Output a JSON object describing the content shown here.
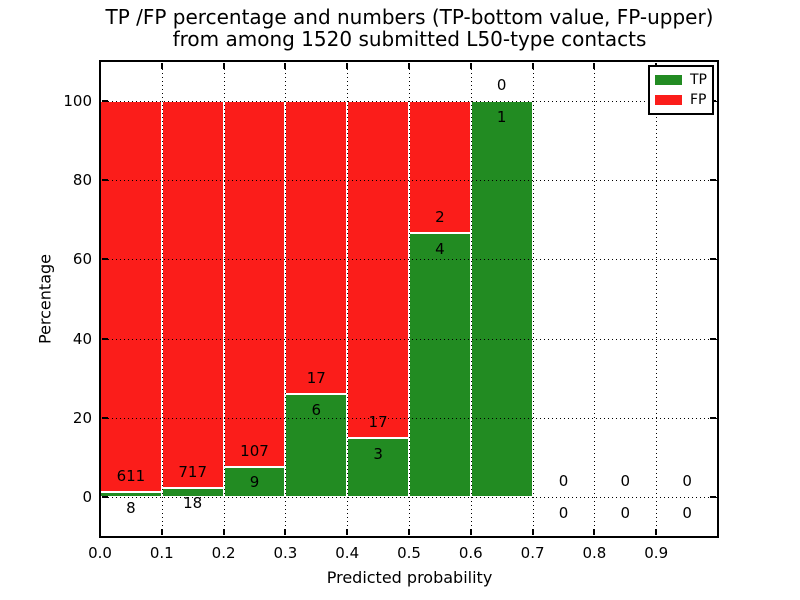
{
  "chart_data": {
    "type": "bar",
    "stacked": true,
    "normalized_to_percent": true,
    "title_lines": [
      "TP /FP percentage and numbers (TP-bottom value, FP-upper)",
      "from among 1520 submitted L50-type contacts"
    ],
    "xlabel": "Predicted probability",
    "ylabel": "Percentage",
    "xlim": [
      0.0,
      1.0
    ],
    "ylim": [
      -10,
      110
    ],
    "xticks": [
      "0.0",
      "0.1",
      "0.2",
      "0.3",
      "0.4",
      "0.5",
      "0.6",
      "0.7",
      "0.8",
      "0.9"
    ],
    "yticks": [
      0,
      20,
      40,
      60,
      80,
      100
    ],
    "grid": "dotted, both axes, drawn over bars",
    "total_contacts": 1520,
    "annotation_rule": "TP count shown below green top, FP count shown above green top",
    "bins": [
      {
        "x_start": 0.0,
        "x_end": 0.1,
        "tp": 8,
        "fp": 611
      },
      {
        "x_start": 0.1,
        "x_end": 0.2,
        "tp": 18,
        "fp": 717
      },
      {
        "x_start": 0.2,
        "x_end": 0.3,
        "tp": 9,
        "fp": 107
      },
      {
        "x_start": 0.3,
        "x_end": 0.4,
        "tp": 6,
        "fp": 17
      },
      {
        "x_start": 0.4,
        "x_end": 0.5,
        "tp": 3,
        "fp": 17
      },
      {
        "x_start": 0.5,
        "x_end": 0.6,
        "tp": 4,
        "fp": 2
      },
      {
        "x_start": 0.6,
        "x_end": 0.7,
        "tp": 1,
        "fp": 0
      },
      {
        "x_start": 0.7,
        "x_end": 0.8,
        "tp": 0,
        "fp": 0
      },
      {
        "x_start": 0.8,
        "x_end": 0.9,
        "tp": 0,
        "fp": 0
      },
      {
        "x_start": 0.9,
        "x_end": 1.0,
        "tp": 0,
        "fp": 0
      }
    ],
    "legend": {
      "position": "upper right",
      "entries": [
        {
          "label": "TP",
          "color": "#228b22"
        },
        {
          "label": "FP",
          "color": "#fb1d1a"
        }
      ]
    },
    "colors": {
      "tp": "#228b22",
      "fp": "#fb1d1a",
      "bar_edge": "#ffffff",
      "grid": "#000000",
      "text": "#000000",
      "background": "#ffffff"
    }
  }
}
